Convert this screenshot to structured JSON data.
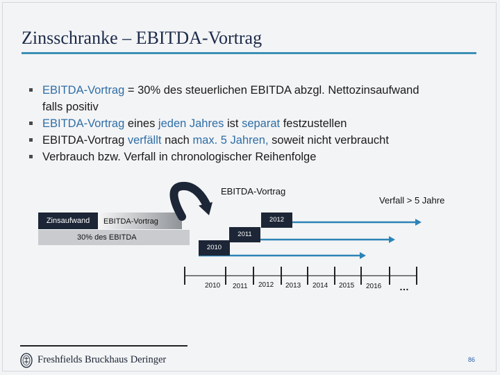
{
  "slide": {
    "title": "Zinsschranke – EBITDA-Vortrag",
    "page_number": "86"
  },
  "bullets": {
    "b1": {
      "part1": "EBITDA-Vortrag",
      "part2": " = 30% des steuerlichen EBITDA abzgl. Nettozinsaufwand",
      "arrow": "",
      "part3": " falls positiv"
    },
    "b2": {
      "part1": "EBITDA-Vortrag",
      "part2": " eines ",
      "part3": "jeden Jahres",
      "part4": " ist ",
      "part5": "separat",
      "part6": " festzustellen"
    },
    "b3": {
      "part1": "EBITDA-Vortrag ",
      "part2": "verfällt",
      "part3": " nach ",
      "part4": "max. 5 Jahren,",
      "part5": " soweit nicht verbraucht"
    },
    "b4": {
      "text": "Verbrauch bzw. Verfall in chronologischer Reihenfolge"
    }
  },
  "diagram": {
    "heading": "EBITDA-Vortrag",
    "expiry_label": "Verfall > 5 Jahre",
    "box_interest": "Zinsaufwand",
    "box_ebitda_carryforward": "EBITDA-Vortrag",
    "box_30_percent": "30% des EBITDA",
    "tags": [
      "2012",
      "2011",
      "2010"
    ],
    "timeline_years": [
      "2010",
      "2011",
      "2012",
      "2013",
      "2014",
      "2015",
      "2016",
      "…"
    ],
    "colors": {
      "dark_navy": "#1c2636",
      "accent_blue": "#3c8fb5",
      "highlight_text": "#2e6ea6",
      "arrow_blue": "#2c83b6"
    }
  },
  "footer": {
    "logo_text": "Freshfields Bruckhaus Deringer",
    "logo_icon": "freshfields-seal-icon"
  }
}
